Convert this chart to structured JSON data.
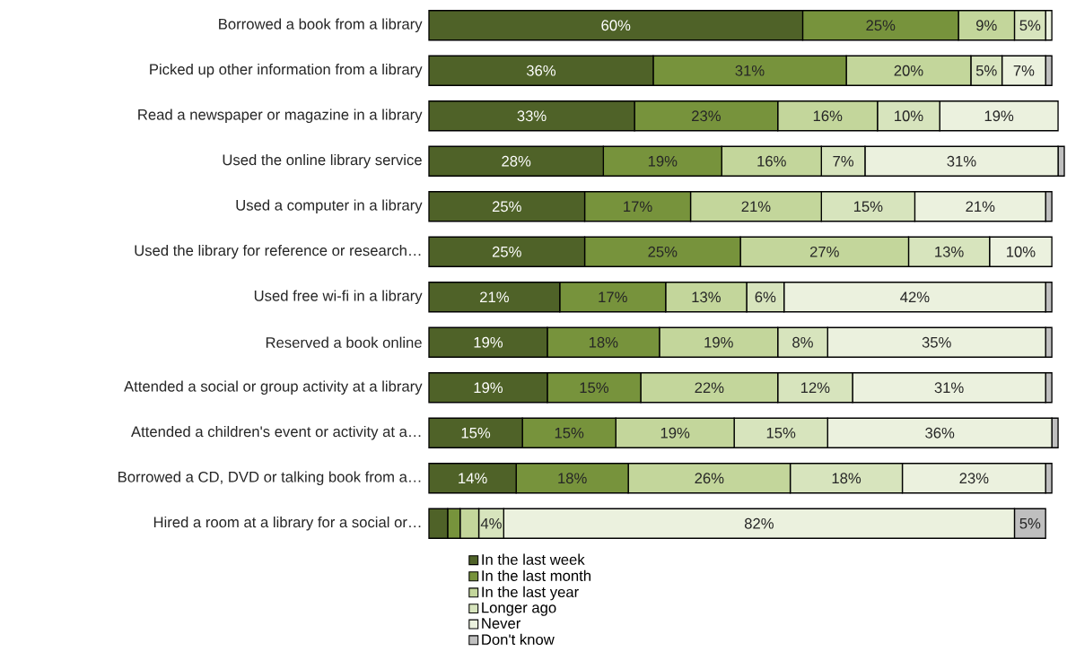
{
  "chart_data": {
    "type": "bar",
    "orientation": "horizontal",
    "stacked": true,
    "legend": "bottom",
    "tick_labels": "y",
    "xlim": [
      0,
      102
    ],
    "categories": [
      "Borrowed a book from a library",
      "Picked up other information from a library",
      "Read a newspaper or magazine in a library",
      "Used the online library service",
      "Used a computer in a library",
      "Used the library for reference or research…",
      "Used free wi-fi in a library",
      "Reserved a book online",
      "Attended a social or group activity at a library",
      "Attended a children's event or activity at a…",
      "Borrowed a CD, DVD or talking book from a…",
      "Hired a room at a library for a social or…"
    ],
    "series": [
      {
        "name": "In the last week",
        "color": "#4f6228",
        "values": [
          60,
          36,
          33,
          28,
          25,
          25,
          21,
          19,
          19,
          15,
          14,
          3
        ],
        "value_labels": [
          "60%",
          "36%",
          "33%",
          "28%",
          "25%",
          "25%",
          "21%",
          "19%",
          "19%",
          "15%",
          "14%",
          null
        ]
      },
      {
        "name": "In the last month",
        "color": "#77933c",
        "values": [
          25,
          31,
          23,
          19,
          17,
          25,
          17,
          18,
          15,
          15,
          18,
          2
        ],
        "value_labels": [
          "25%",
          "31%",
          "23%",
          "19%",
          "17%",
          "25%",
          "17%",
          "18%",
          "15%",
          "15%",
          "18%",
          null
        ]
      },
      {
        "name": "In the last year",
        "color": "#c3d69b",
        "values": [
          9,
          20,
          16,
          16,
          21,
          27,
          13,
          19,
          22,
          19,
          26,
          3
        ],
        "value_labels": [
          "9%",
          "20%",
          "16%",
          "16%",
          "21%",
          "27%",
          "13%",
          "19%",
          "22%",
          "19%",
          "26%",
          null
        ]
      },
      {
        "name": "Longer ago",
        "color": "#d7e4bd",
        "values": [
          5,
          5,
          10,
          7,
          15,
          13,
          6,
          8,
          12,
          15,
          18,
          4
        ],
        "value_labels": [
          "5%",
          "5%",
          "10%",
          "7%",
          "15%",
          "13%",
          "6%",
          "8%",
          "12%",
          "15%",
          "18%",
          "4%"
        ]
      },
      {
        "name": "Never",
        "color": "#ebf1de",
        "values": [
          1,
          7,
          19,
          31,
          21,
          10,
          42,
          35,
          31,
          36,
          23,
          82
        ],
        "value_labels": [
          null,
          "7%",
          "19%",
          "31%",
          "21%",
          "10%",
          "42%",
          "35%",
          "31%",
          "36%",
          "23%",
          "82%"
        ]
      },
      {
        "name": "Don't know",
        "color": "#bfbfbf",
        "values": [
          0,
          1,
          0,
          1,
          1,
          0,
          1,
          1,
          1,
          1,
          1,
          5
        ],
        "value_labels": [
          null,
          null,
          null,
          null,
          null,
          null,
          null,
          null,
          null,
          null,
          null,
          "5%"
        ]
      }
    ]
  }
}
